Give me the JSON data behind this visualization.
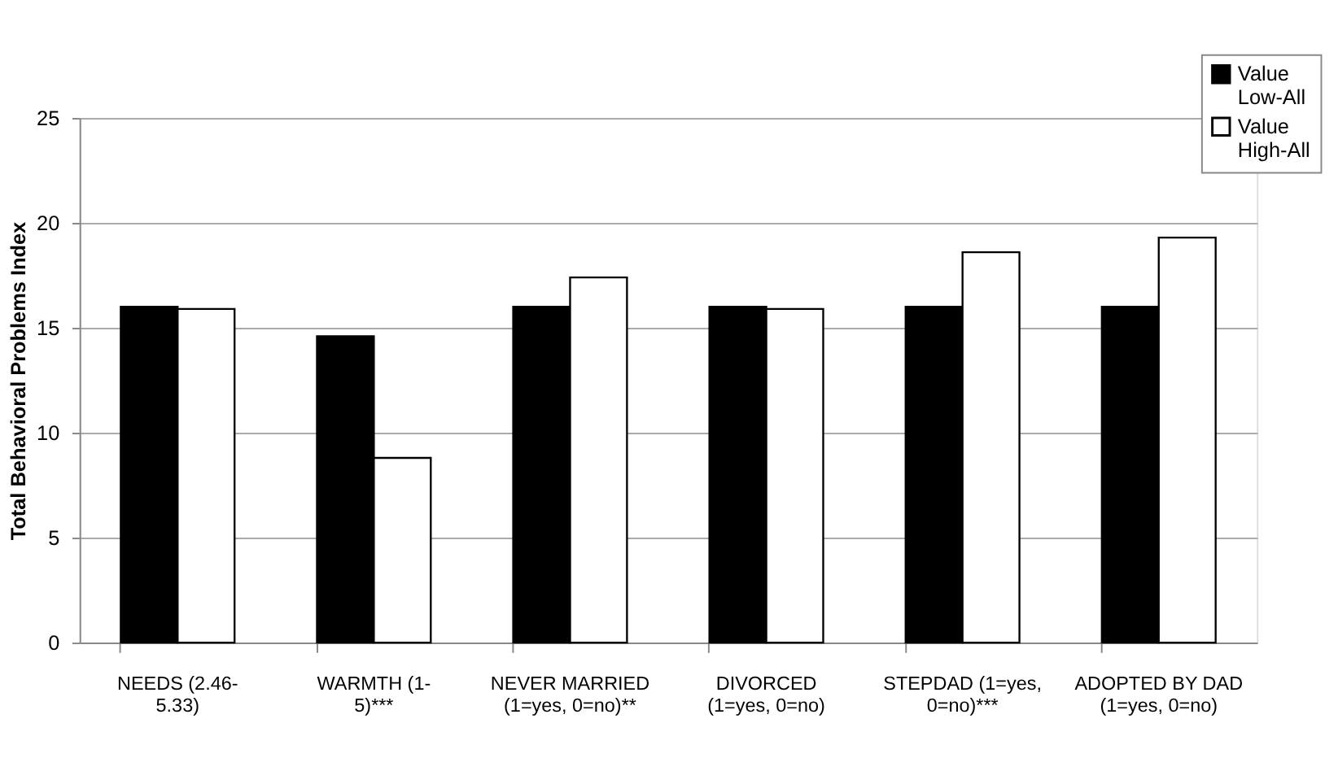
{
  "chart_data": {
    "type": "bar",
    "categories": [
      "NEEDS (2.46-5.33)",
      "WARMTH (1-5)***",
      "NEVER MARRIED (1=yes, 0=no)**",
      "DIVORCED (1=yes, 0=no)",
      "STEPDAD (1=yes, 0=no)***",
      "ADOPTED BY DAD (1=yes, 0=no)"
    ],
    "series": [
      {
        "name": "Value Low-All",
        "color": "#000000",
        "values": [
          16.0,
          14.6,
          16.0,
          16.0,
          16.0,
          16.0
        ]
      },
      {
        "name": "Value High-All",
        "color": "#ffffff",
        "values": [
          15.9,
          8.8,
          17.4,
          15.9,
          18.6,
          19.3
        ]
      }
    ],
    "ylabel": "Total Behavioral Problems Index",
    "ylim": [
      0,
      25
    ],
    "yticks": [
      0,
      5,
      10,
      15,
      20,
      25
    ],
    "grid": "y",
    "legend": "top right"
  }
}
